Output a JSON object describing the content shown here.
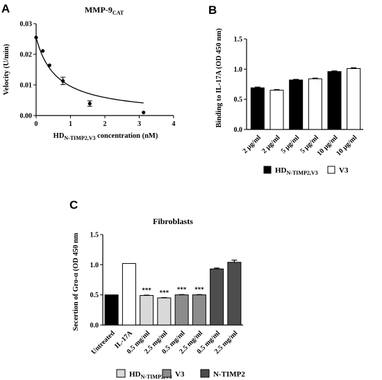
{
  "panel_letters": {
    "a": "A",
    "b": "B",
    "c": "C"
  },
  "colors": {
    "black": "#000000",
    "white": "#ffffff",
    "light_gray": "#d9d9d9",
    "mid_gray": "#8c8c8c",
    "dark_gray": "#4d4d4d"
  },
  "chart_data": [
    {
      "id": "A",
      "type": "scatter",
      "title": "MMP-9",
      "title_sub": "CAT",
      "xlabel_main": "HD",
      "xlabel_sub": "N-TIMP2,V3",
      "xlabel_rest": " concentration (nM)",
      "ylabel": "Velocity (U/min)",
      "xlim": [
        0,
        4
      ],
      "ylim": [
        0,
        0.03
      ],
      "xticks": [
        "0",
        "1",
        "2",
        "3",
        "4"
      ],
      "yticks": [
        "0.00",
        "0.01",
        "0.02",
        "0.03"
      ],
      "points": [
        {
          "x": 0.0,
          "y": 0.0255,
          "err": 0.0
        },
        {
          "x": 0.195,
          "y": 0.0211,
          "err": 0.0
        },
        {
          "x": 0.39,
          "y": 0.0164,
          "err": 0.0
        },
        {
          "x": 0.78,
          "y": 0.0113,
          "err": 0.0012
        },
        {
          "x": 1.56,
          "y": 0.0039,
          "err": 0.0009
        },
        {
          "x": 3.125,
          "y": 0.001,
          "err": 0.0
        }
      ],
      "fit": {
        "model": "hyperbolic",
        "v0": 0.0255,
        "ki": 0.6,
        "x_end": 3.125
      }
    },
    {
      "id": "B",
      "type": "bar",
      "ylabel": "Binding to IL-17A (OD 450 nm)",
      "ylim": [
        0,
        1.5
      ],
      "yticks": [
        "0.0",
        "0.5",
        "1.0",
        "1.5"
      ],
      "categories": [
        "2 µg/ml",
        "2 µg/ml",
        "5 µg/ml",
        "5 µg/ml",
        "10 µg/ml",
        "10 µg/ml"
      ],
      "values": [
        0.69,
        0.65,
        0.82,
        0.84,
        0.96,
        1.01
      ],
      "errors": [
        0.012,
        0.01,
        0.01,
        0.01,
        0.01,
        0.012
      ],
      "fills": [
        "black",
        "white",
        "black",
        "white",
        "black",
        "white"
      ],
      "legend": [
        {
          "label": "HD",
          "sub": "N-TIMP2,V3",
          "fill": "black"
        },
        {
          "label": "V3",
          "sub": "",
          "fill": "white"
        }
      ]
    },
    {
      "id": "C",
      "type": "bar",
      "title": "Fibroblasts",
      "ylabel": "Secertion of Gro-α (OD 450 nm",
      "ylim": [
        0,
        1.5
      ],
      "yticks": [
        "0.0",
        "0.5",
        "1.0",
        "1.5"
      ],
      "categories": [
        "Untreated",
        "IL-17A",
        "0.5 mg/ml",
        "2.5 mg/ml",
        "0.5 mg/ml",
        "2.5 mg/ml",
        "0.5 mg/ml",
        "2.5 mg/ml"
      ],
      "values": [
        0.5,
        1.02,
        0.49,
        0.45,
        0.5,
        0.5,
        0.93,
        1.04
      ],
      "errors": [
        0.0,
        0.0,
        0.005,
        0.005,
        0.005,
        0.005,
        0.015,
        0.035
      ],
      "fills": [
        "black",
        "white",
        "light_gray",
        "light_gray",
        "mid_gray",
        "mid_gray",
        "dark_gray",
        "dark_gray"
      ],
      "annotations": [
        "",
        "",
        "***",
        "***",
        "***",
        "***",
        "",
        ""
      ],
      "legend": [
        {
          "label": "HD",
          "sub": "N-TIMP2,V3",
          "fill": "light_gray"
        },
        {
          "label": "V3",
          "sub": "",
          "fill": "mid_gray"
        },
        {
          "label": "N-TIMP2",
          "sub": "",
          "fill": "dark_gray"
        }
      ]
    }
  ]
}
